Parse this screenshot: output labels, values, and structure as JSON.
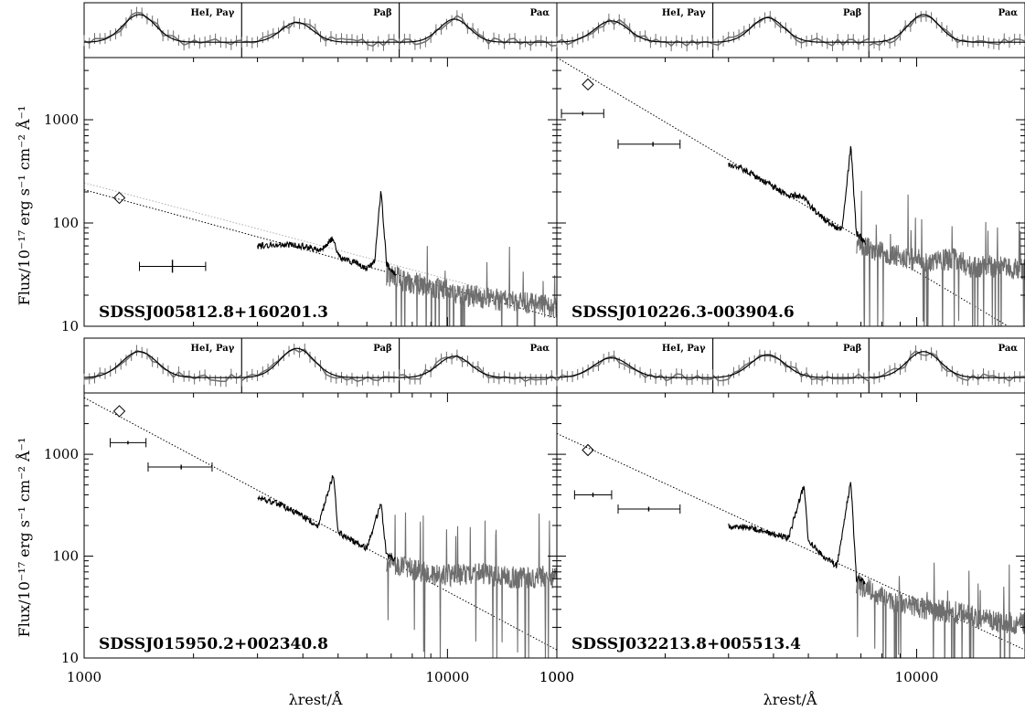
{
  "figure": {
    "ylabel": "Flux/10⁻¹⁷ erg s⁻¹ cm⁻² Å⁻¹",
    "xlabel": "λrest/Å",
    "colors": {
      "data": "#6e6e6e",
      "fit": "#000000",
      "powerlaw": "#000000",
      "powerlaw_alt": "#b0b0b0"
    }
  },
  "chart_data": [
    {
      "type": "line",
      "object": "SDSSJ005812.8+160201.3",
      "x_scale": "log",
      "y_scale": "log",
      "xlim": [
        1000,
        20000
      ],
      "ylim": [
        10,
        4000
      ],
      "x_ticks": [
        1000,
        10000
      ],
      "x_tick_labels": [
        "1000",
        "10000"
      ],
      "y_ticks": [
        10,
        100,
        1000
      ],
      "y_tick_labels": [
        "10",
        "100",
        "1000"
      ],
      "insets": [
        "HeI, Paγ",
        "Paβ",
        "Paα"
      ],
      "photometry_point": {
        "x": 1250,
        "y": 175
      },
      "photometry_bars": [
        {
          "x": 1750,
          "y": 38,
          "xerr": [
            1420,
            2160
          ],
          "yerr": [
            33,
            44
          ]
        }
      ],
      "powerlaw": {
        "x": [
          1000,
          20000
        ],
        "y": [
          210,
          12
        ]
      },
      "powerlaw_alt": {
        "x": [
          1000,
          20000
        ],
        "y": [
          245,
          15
        ]
      },
      "optical_spectrum": {
        "x": [
          3000,
          3500,
          4000,
          4500,
          4800,
          5100,
          5500,
          6000,
          6300,
          6563,
          6800,
          7200
        ],
        "y": [
          60,
          62,
          60,
          55,
          70,
          45,
          42,
          36,
          42,
          210,
          40,
          32
        ]
      },
      "nir_spectrum": {
        "x": [
          6800,
          7500,
          8500,
          9500,
          11000,
          12800,
          14000,
          16000,
          18000,
          20000
        ],
        "y": [
          32,
          28,
          25,
          23,
          20,
          19,
          18,
          17,
          16,
          15
        ]
      }
    },
    {
      "type": "line",
      "object": "SDSSJ010226.3-003904.6",
      "x_scale": "log",
      "y_scale": "log",
      "xlim": [
        1000,
        20000
      ],
      "ylim": [
        10,
        4000
      ],
      "x_ticks": [
        1000,
        10000
      ],
      "x_tick_labels": [
        "1000",
        "10000"
      ],
      "y_ticks": [
        10,
        100,
        1000
      ],
      "y_tick_labels": [
        "10",
        "100",
        "1000"
      ],
      "insets": [
        "HeI, Paγ",
        "Paβ",
        "Paα"
      ],
      "photometry_point": {
        "x": 1220,
        "y": 2200
      },
      "photometry_bars": [
        {
          "x": 1180,
          "y": 1150,
          "xerr": [
            1030,
            1350
          ],
          "yerr": [
            1100,
            1200
          ]
        },
        {
          "x": 1850,
          "y": 580,
          "xerr": [
            1480,
            2200
          ],
          "yerr": [
            550,
            610
          ]
        }
      ],
      "powerlaw": {
        "x": [
          1000,
          20000
        ],
        "y": [
          4000,
          8
        ]
      },
      "optical_spectrum": {
        "x": [
          3000,
          3300,
          3800,
          4300,
          4861,
          5200,
          5700,
          6200,
          6563,
          6800,
          7200
        ],
        "y": [
          370,
          330,
          250,
          190,
          180,
          130,
          100,
          85,
          560,
          80,
          65
        ]
      },
      "nir_spectrum": {
        "x": [
          6800,
          7500,
          8500,
          9500,
          11000,
          12800,
          14000,
          16000,
          18000,
          20000
        ],
        "y": [
          65,
          55,
          50,
          45,
          42,
          45,
          38,
          38,
          37,
          36
        ]
      }
    },
    {
      "type": "line",
      "object": "SDSSJ015950.2+002340.8",
      "x_scale": "log",
      "y_scale": "log",
      "xlim": [
        1000,
        20000
      ],
      "ylim": [
        10,
        4000
      ],
      "x_ticks": [
        1000,
        10000
      ],
      "x_tick_labels": [
        "1000",
        "10000"
      ],
      "y_ticks": [
        10,
        100,
        1000
      ],
      "y_tick_labels": [
        "10",
        "100",
        "1000"
      ],
      "insets": [
        "HeI, Paγ",
        "Paβ",
        "Paα"
      ],
      "photometry_point": {
        "x": 1250,
        "y": 2650
      },
      "photometry_bars": [
        {
          "x": 1320,
          "y": 1300,
          "xerr": [
            1180,
            1480
          ],
          "yerr": [
            1250,
            1350
          ]
        },
        {
          "x": 1850,
          "y": 750,
          "xerr": [
            1500,
            2250
          ],
          "yerr": [
            710,
            790
          ]
        }
      ],
      "powerlaw": {
        "x": [
          1000,
          20000
        ],
        "y": [
          3600,
          12
        ]
      },
      "optical_spectrum": {
        "x": [
          3000,
          3400,
          3900,
          4400,
          4861,
          5000,
          5500,
          6000,
          6563,
          6800,
          7200
        ],
        "y": [
          380,
          330,
          260,
          200,
          640,
          170,
          140,
          120,
          330,
          100,
          90
        ]
      },
      "nir_spectrum": {
        "x": [
          6800,
          7500,
          8500,
          9500,
          11000,
          12800,
          14000,
          16000,
          18000,
          20000
        ],
        "y": [
          90,
          80,
          70,
          65,
          65,
          68,
          62,
          62,
          63,
          62
        ]
      }
    },
    {
      "type": "line",
      "object": "SDSSJ032213.8+005513.4",
      "x_scale": "log",
      "y_scale": "log",
      "xlim": [
        1000,
        20000
      ],
      "ylim": [
        10,
        4000
      ],
      "x_ticks": [
        1000,
        10000
      ],
      "x_tick_labels": [
        "1000",
        "10000"
      ],
      "y_ticks": [
        10,
        100,
        1000
      ],
      "y_tick_labels": [
        "10",
        "100",
        "1000"
      ],
      "insets": [
        "HeI, Paγ",
        "Paβ",
        "Paα"
      ],
      "photometry_point": {
        "x": 1220,
        "y": 1100
      },
      "photometry_bars": [
        {
          "x": 1260,
          "y": 400,
          "xerr": [
            1120,
            1420
          ],
          "yerr": [
            380,
            420
          ]
        },
        {
          "x": 1800,
          "y": 290,
          "xerr": [
            1480,
            2200
          ],
          "yerr": [
            275,
            305
          ]
        }
      ],
      "powerlaw": {
        "x": [
          1000,
          20000
        ],
        "y": [
          1600,
          12
        ]
      },
      "optical_spectrum": {
        "x": [
          3000,
          3400,
          3900,
          4400,
          4861,
          5000,
          5500,
          6000,
          6563,
          6800,
          7200
        ],
        "y": [
          200,
          190,
          170,
          150,
          500,
          140,
          100,
          80,
          550,
          60,
          55
        ]
      },
      "nir_spectrum": {
        "x": [
          6800,
          7500,
          8500,
          9500,
          11000,
          12800,
          14000,
          16000,
          18000,
          20000
        ],
        "y": [
          55,
          45,
          38,
          33,
          30,
          28,
          26,
          24,
          22,
          22
        ]
      }
    }
  ]
}
